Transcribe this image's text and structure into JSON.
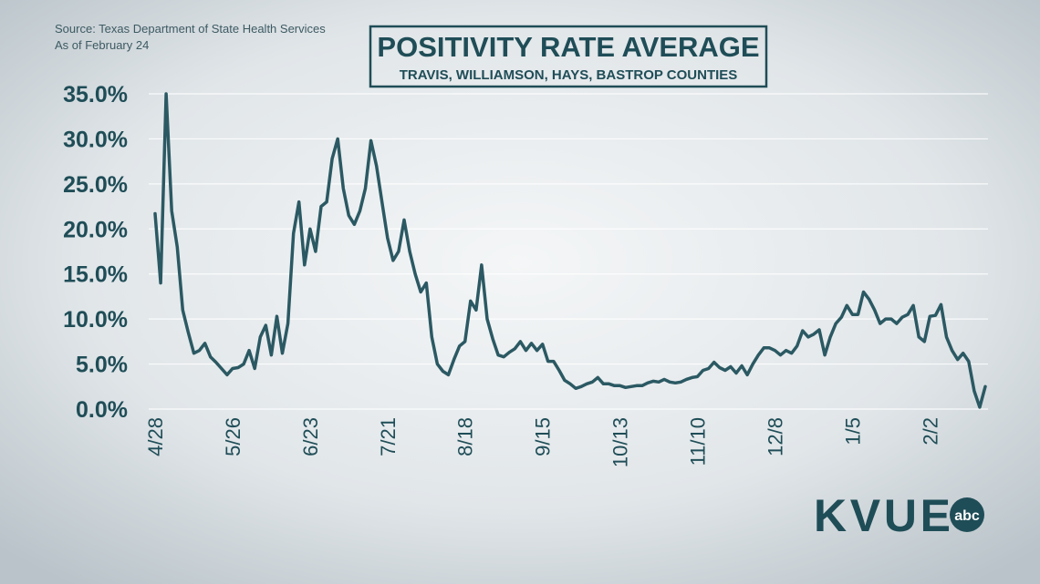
{
  "chart_data": {
    "type": "line",
    "title": "POSITIVITY RATE AVERAGE",
    "subtitle": "TRAVIS, WILLIAMSON, HAYS, BASTROP COUNTIES",
    "source": "Source: Texas Department of State Health Services",
    "note": "As of February 24",
    "logo": {
      "text": "KVUE",
      "badge": "abc"
    },
    "color": "#2b5963",
    "grid": true,
    "categories": [
      "4/28",
      null,
      null,
      null,
      null,
      null,
      null,
      null,
      null,
      null,
      null,
      null,
      null,
      null,
      "5/26",
      null,
      null,
      null,
      null,
      null,
      null,
      null,
      null,
      null,
      null,
      null,
      null,
      null,
      "6/23",
      null,
      null,
      null,
      null,
      null,
      null,
      null,
      null,
      null,
      null,
      null,
      null,
      null,
      "7/21",
      null,
      null,
      null,
      null,
      null,
      null,
      null,
      null,
      null,
      null,
      null,
      null,
      null,
      "8/18",
      null,
      null,
      null,
      null,
      null,
      null,
      null,
      null,
      null,
      null,
      null,
      null,
      null,
      "9/15",
      null,
      null,
      null,
      null,
      null,
      null,
      null,
      null,
      null,
      null,
      null,
      null,
      null,
      "10/13",
      null,
      null,
      null,
      null,
      null,
      null,
      null,
      null,
      null,
      null,
      null,
      null,
      null,
      "11/10",
      null,
      null,
      null,
      null,
      null,
      null,
      null,
      null,
      null,
      null,
      null,
      null,
      null,
      "12/8",
      null,
      null,
      null,
      null,
      null,
      null,
      null,
      null,
      null,
      null,
      null,
      null,
      null,
      "1/5",
      null,
      null,
      null,
      null,
      null,
      null,
      null,
      null,
      null,
      null,
      null,
      null,
      null,
      "2/2",
      null,
      null,
      null,
      null,
      null,
      null,
      null,
      null,
      null,
      null
    ],
    "values": [
      21.7,
      14,
      35,
      22,
      18,
      11,
      8.5,
      6.2,
      6.5,
      7.3,
      5.8,
      5.2,
      4.5,
      3.8,
      4.5,
      4.6,
      5,
      6.5,
      4.5,
      8,
      9.3,
      6,
      10.3,
      6.2,
      9.5,
      19.5,
      23,
      16,
      20,
      17.5,
      22.5,
      23,
      27.8,
      30,
      24.5,
      21.5,
      20.5,
      22,
      24.5,
      29.8,
      27,
      23,
      19,
      16.5,
      17.5,
      21,
      17.5,
      15,
      13,
      14,
      8,
      5,
      4.2,
      3.8,
      5.5,
      7,
      7.5,
      12,
      11,
      16,
      10,
      7.8,
      6,
      5.8,
      6.3,
      6.7,
      7.5,
      6.5,
      7.3,
      6.5,
      7.2,
      5.3,
      5.3,
      4.3,
      3.2,
      2.8,
      2.3,
      2.5,
      2.8,
      3,
      3.5,
      2.8,
      2.8,
      2.6,
      2.6,
      2.4,
      2.5,
      2.6,
      2.6,
      2.9,
      3.1,
      3,
      3.3,
      3,
      2.9,
      3,
      3.3,
      3.5,
      3.6,
      4.3,
      4.5,
      5.2,
      4.6,
      4.3,
      4.7,
      4,
      4.8,
      3.8,
      5,
      6,
      6.8,
      6.8,
      6.5,
      6,
      6.5,
      6.2,
      7,
      8.7,
      8,
      8.3,
      8.8,
      6,
      8,
      9.5,
      10.2,
      11.5,
      10.5,
      10.5,
      13,
      12.2,
      11,
      9.5,
      10,
      10,
      9.5,
      10.2,
      10.5,
      11.5,
      8,
      7.5,
      10.3,
      10.4,
      11.6,
      8,
      6.5,
      5.5,
      6.2,
      5.3,
      2,
      0.2,
      2.5
    ],
    "ylim": [
      0,
      35
    ],
    "yticks": [
      {
        "value": 0,
        "label": "0.0%"
      },
      {
        "value": 5,
        "label": "5.0%"
      },
      {
        "value": 10,
        "label": "10.0%"
      },
      {
        "value": 15,
        "label": "15.0%"
      },
      {
        "value": 20,
        "label": "20.0%"
      },
      {
        "value": 25,
        "label": "25.0%"
      },
      {
        "value": 30,
        "label": "30.0%"
      },
      {
        "value": 35,
        "label": "35.0%"
      }
    ]
  }
}
